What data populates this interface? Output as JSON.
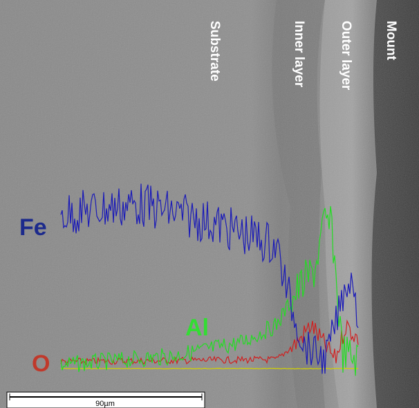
{
  "labels": {
    "substrate": "Substrate",
    "inner_layer": "Inner layer",
    "outer_layer": "Outer layer",
    "mount": "Mount"
  },
  "elements": {
    "fe": "Fe",
    "al": "Al",
    "o": "O"
  },
  "scale_bar": {
    "label": "90µm"
  }
}
